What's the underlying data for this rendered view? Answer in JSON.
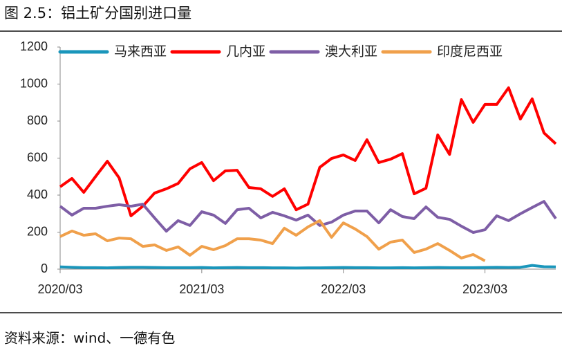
{
  "title": "图 2.5：铝土矿分国别进口量",
  "source": "资料来源：wind、一德有色",
  "chart_data": {
    "type": "line",
    "categories": [
      "2020/03",
      null,
      null,
      null,
      null,
      null,
      null,
      null,
      null,
      null,
      null,
      null,
      "2021/03",
      null,
      null,
      null,
      null,
      null,
      null,
      null,
      null,
      null,
      null,
      null,
      "2022/03",
      null,
      null,
      null,
      null,
      null,
      null,
      null,
      null,
      null,
      null,
      null,
      "2023/03",
      null,
      null,
      null,
      null,
      null,
      null
    ],
    "ylim": [
      0,
      1200
    ],
    "yticks": [
      0,
      200,
      400,
      600,
      800,
      1000,
      1200
    ],
    "legend": "top",
    "series": [
      {
        "name": "马来西亚",
        "color": "#1a96bb",
        "values": [
          12,
          10,
          8,
          8,
          7,
          9,
          10,
          10,
          9,
          8,
          8,
          8,
          9,
          7,
          8,
          9,
          8,
          8,
          7,
          7,
          6,
          7,
          7,
          8,
          9,
          8,
          8,
          7,
          7,
          8,
          7,
          8,
          9,
          8,
          8,
          8,
          9,
          10,
          9,
          10,
          20,
          13,
          12
        ]
      },
      {
        "name": "几内亚",
        "color": "#ff0000",
        "values": [
          445,
          490,
          415,
          500,
          583,
          493,
          288,
          340,
          411,
          434,
          463,
          542,
          576,
          478,
          531,
          534,
          441,
          434,
          393,
          434,
          321,
          351,
          550,
          598,
          617,
          587,
          699,
          576,
          594,
          624,
          407,
          437,
          725,
          620,
          916,
          793,
          890,
          890,
          980,
          811,
          920,
          736,
          677
        ]
      },
      {
        "name": "澳大利亚",
        "color": "#7e5ea6",
        "values": [
          340,
          292,
          329,
          329,
          340,
          348,
          340,
          351,
          277,
          205,
          262,
          236,
          310,
          292,
          247,
          321,
          329,
          277,
          307,
          288,
          265,
          292,
          236,
          254,
          292,
          314,
          314,
          250,
          321,
          284,
          273,
          336,
          280,
          269,
          232,
          198,
          213,
          288,
          262,
          299,
          333,
          366,
          273
        ]
      },
      {
        "name": "印度尼西亚",
        "color": "#f0a04b",
        "values": [
          176,
          206,
          183,
          191,
          153,
          168,
          164,
          123,
          131,
          101,
          120,
          75,
          123,
          105,
          127,
          164,
          164,
          157,
          138,
          221,
          183,
          228,
          262,
          172,
          250,
          217,
          176,
          108,
          146,
          157,
          90,
          108,
          138,
          101,
          60,
          79,
          45,
          null,
          null,
          null,
          null,
          null,
          null
        ]
      }
    ]
  }
}
